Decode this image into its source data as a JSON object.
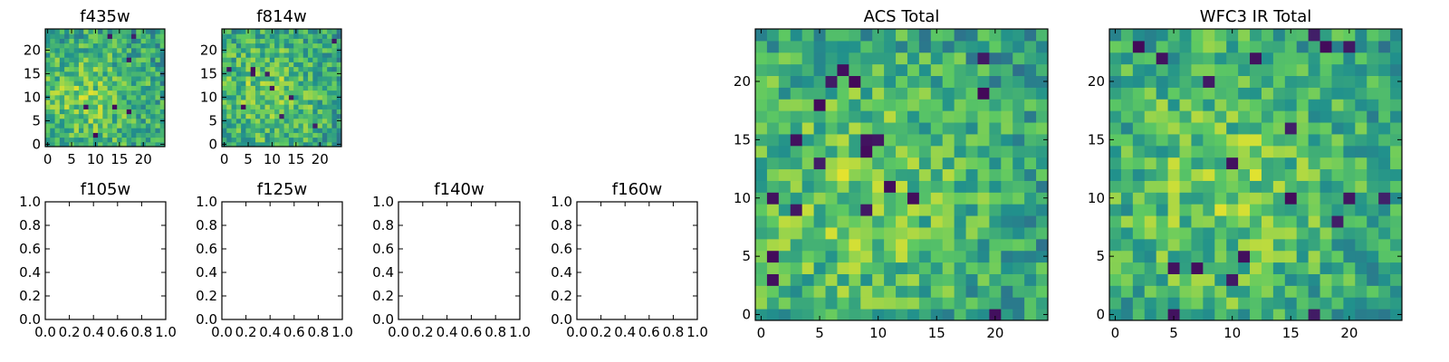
{
  "chart_data": [
    {
      "type": "heatmap",
      "title": "f435w",
      "xlim": [
        -0.5,
        24.5
      ],
      "ylim": [
        -0.5,
        24.5
      ],
      "xticks": [
        "0",
        "5",
        "10",
        "15",
        "20"
      ],
      "yticks": [
        "0",
        "5",
        "10",
        "15",
        "20"
      ],
      "grid": [
        25,
        25
      ],
      "colormap": "viridis",
      "seed": 11,
      "center": [
        8,
        10
      ],
      "dark_frac": 0.015
    },
    {
      "type": "heatmap",
      "title": "f814w",
      "xlim": [
        -0.5,
        24.5
      ],
      "ylim": [
        -0.5,
        24.5
      ],
      "xticks": [
        "0",
        "5",
        "10",
        "15",
        "20"
      ],
      "yticks": [
        "0",
        "5",
        "10",
        "15",
        "20"
      ],
      "grid": [
        25,
        25
      ],
      "colormap": "viridis",
      "seed": 23,
      "center": [
        9,
        11
      ],
      "dark_frac": 0.012
    },
    {
      "type": "heatmap",
      "title": "f105w",
      "xlim": [
        0,
        1
      ],
      "ylim": [
        0,
        1
      ],
      "xticks": [
        "0.0",
        "0.2",
        "0.4",
        "0.6",
        "0.8",
        "1.0"
      ],
      "yticks": [
        "0.0",
        "0.2",
        "0.4",
        "0.6",
        "0.8",
        "1.0"
      ],
      "empty": true
    },
    {
      "type": "heatmap",
      "title": "f125w",
      "xlim": [
        0,
        1
      ],
      "ylim": [
        0,
        1
      ],
      "xticks": [
        "0.0",
        "0.2",
        "0.4",
        "0.6",
        "0.8",
        "1.0"
      ],
      "yticks": [
        "0.0",
        "0.2",
        "0.4",
        "0.6",
        "0.8",
        "1.0"
      ],
      "empty": true
    },
    {
      "type": "heatmap",
      "title": "f140w",
      "xlim": [
        0,
        1
      ],
      "ylim": [
        0,
        1
      ],
      "xticks": [
        "0.0",
        "0.2",
        "0.4",
        "0.6",
        "0.8",
        "1.0"
      ],
      "yticks": [
        "0.0",
        "0.2",
        "0.4",
        "0.6",
        "0.8",
        "1.0"
      ],
      "empty": true
    },
    {
      "type": "heatmap",
      "title": "f160w",
      "xlim": [
        0,
        1
      ],
      "ylim": [
        0,
        1
      ],
      "xticks": [
        "0.0",
        "0.2",
        "0.4",
        "0.6",
        "0.8",
        "1.0"
      ],
      "yticks": [
        "0.0",
        "0.2",
        "0.4",
        "0.6",
        "0.8",
        "1.0"
      ],
      "empty": true
    },
    {
      "type": "heatmap",
      "title": "ACS Total",
      "xlim": [
        -0.5,
        24.5
      ],
      "ylim": [
        -0.5,
        24.5
      ],
      "xticks": [
        "0",
        "5",
        "10",
        "15",
        "20"
      ],
      "yticks": [
        "0",
        "5",
        "10",
        "15",
        "20"
      ],
      "grid": [
        25,
        25
      ],
      "colormap": "viridis",
      "seed": 37,
      "center": [
        8,
        10
      ],
      "dark_frac": 0.035
    },
    {
      "type": "heatmap",
      "title": "WFC3 IR Total",
      "xlim": [
        -0.5,
        24.5
      ],
      "ylim": [
        -0.5,
        24.5
      ],
      "xticks": [
        "0",
        "5",
        "10",
        "15",
        "20"
      ],
      "yticks": [
        "0",
        "5",
        "10",
        "15",
        "20"
      ],
      "grid": [
        25,
        25
      ],
      "colormap": "viridis",
      "seed": 53,
      "center": [
        10,
        11
      ],
      "dark_frac": 0.035
    }
  ]
}
